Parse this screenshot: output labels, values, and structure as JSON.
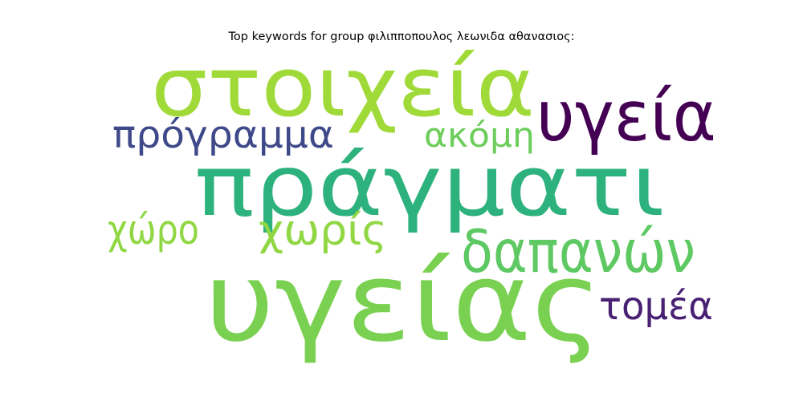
{
  "title": "Top keywords for group φιλιπποπουλος λεωνιδα αθανασιος:",
  "words": [
    {
      "text": "στοιχεία",
      "color": "#a0da39"
    },
    {
      "text": "υγεία",
      "color": "#440154"
    },
    {
      "text": "πρόγραμμα",
      "color": "#3e4989"
    },
    {
      "text": "ακόμη",
      "color": "#6ccd5a"
    },
    {
      "text": "πράγματι",
      "color": "#2db27d"
    },
    {
      "text": "χώρο",
      "color": "#90d743"
    },
    {
      "text": "χωρίς",
      "color": "#90d743"
    },
    {
      "text": "δαπανών",
      "color": "#5ec962"
    },
    {
      "text": "υγείας",
      "color": "#7ad151"
    },
    {
      "text": "τομέα",
      "color": "#482173"
    }
  ]
}
